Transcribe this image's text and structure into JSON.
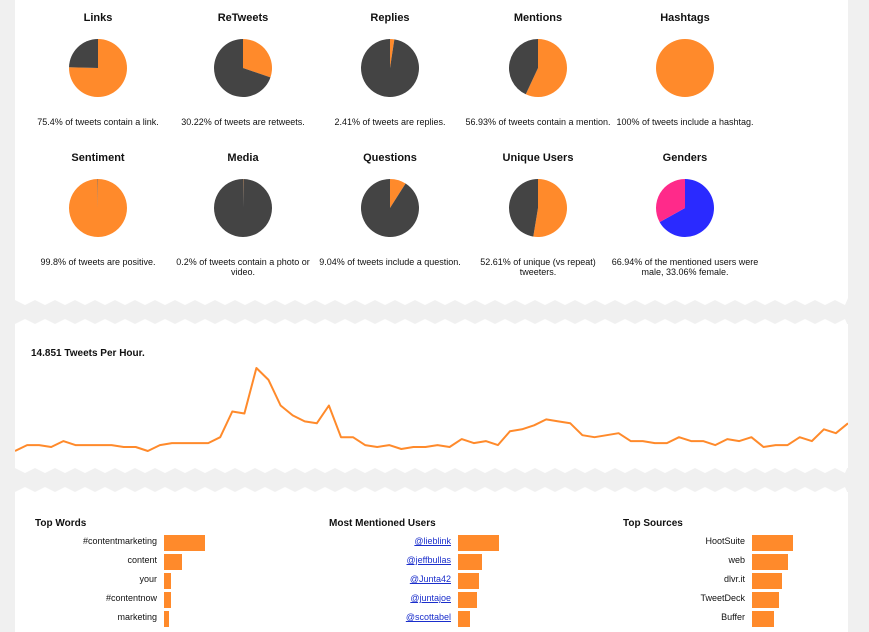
{
  "colors": {
    "accent": "#ff8a2b",
    "dark": "#444444",
    "pink": "#ff2a8a",
    "blue": "#2a2aff"
  },
  "stats": [
    {
      "title": "Links",
      "caption": "75.4% of tweets contain a link.",
      "value": 75.4
    },
    {
      "title": "ReTweets",
      "caption": "30.22% of tweets are retweets.",
      "value": 30.22
    },
    {
      "title": "Replies",
      "caption": "2.41% of tweets are replies.",
      "value": 2.41
    },
    {
      "title": "Mentions",
      "caption": "56.93% of tweets contain a mention.",
      "value": 56.93
    },
    {
      "title": "Hashtags",
      "caption": "100% of tweets include a hashtag.",
      "value": 100
    },
    {
      "title": "Sentiment",
      "caption": "99.8% of tweets are positive.",
      "value": 99.8
    },
    {
      "title": "Media",
      "caption": "0.2% of tweets contain a photo or video.",
      "value": 0.2
    },
    {
      "title": "Questions",
      "caption": "9.04% of tweets include a question.",
      "value": 9.04
    },
    {
      "title": "Unique Users",
      "caption": "52.61% of unique (vs repeat) tweeters.",
      "value": 52.61
    },
    {
      "title": "Genders",
      "caption": "66.94% of the mentioned users were male, 33.06% female.",
      "value": 66.94,
      "colors": [
        "#2a2aff",
        "#ff2a8a"
      ]
    }
  ],
  "rate": {
    "title": "14.851 Tweets Per Hour."
  },
  "chart_data": [
    {
      "type": "pie",
      "title": "Links",
      "values": [
        75.4,
        24.6
      ]
    },
    {
      "type": "pie",
      "title": "ReTweets",
      "values": [
        30.22,
        69.78
      ]
    },
    {
      "type": "pie",
      "title": "Replies",
      "values": [
        2.41,
        97.59
      ]
    },
    {
      "type": "pie",
      "title": "Mentions",
      "values": [
        56.93,
        43.07
      ]
    },
    {
      "type": "pie",
      "title": "Hashtags",
      "values": [
        100,
        0
      ]
    },
    {
      "type": "pie",
      "title": "Sentiment",
      "values": [
        99.8,
        0.2
      ]
    },
    {
      "type": "pie",
      "title": "Media",
      "values": [
        0.2,
        99.8
      ]
    },
    {
      "type": "pie",
      "title": "Questions",
      "values": [
        9.04,
        90.96
      ]
    },
    {
      "type": "pie",
      "title": "Unique Users",
      "values": [
        52.61,
        47.39
      ]
    },
    {
      "type": "pie",
      "title": "Genders",
      "values": [
        66.94,
        33.06
      ]
    },
    {
      "type": "line",
      "title": "14.851 Tweets Per Hour.",
      "values": [
        10,
        13,
        13,
        12,
        15,
        13,
        13,
        13,
        13,
        12,
        12,
        10,
        13,
        14,
        14,
        14,
        14,
        17,
        30,
        29,
        52,
        46,
        33,
        28,
        25,
        24,
        33,
        17,
        17,
        13,
        12,
        13,
        11,
        12,
        12,
        13,
        12,
        16,
        14,
        15,
        13,
        20,
        21,
        23,
        26,
        25,
        24,
        18,
        17,
        18,
        19,
        15,
        15,
        14,
        14,
        17,
        15,
        15,
        13,
        16,
        15,
        17,
        12,
        13,
        13,
        17,
        15,
        21,
        19,
        24
      ]
    },
    {
      "type": "bar",
      "title": "Top Words",
      "categories": [
        "#contentmarketing",
        "content",
        "your",
        "#contentnow",
        "marketing"
      ],
      "values": [
        41,
        18,
        7,
        7,
        5
      ]
    },
    {
      "type": "bar",
      "title": "Most Mentioned Users",
      "categories": [
        "@lieblink",
        "@jeffbullas",
        "@Junta42",
        "@juntajoe",
        "@scottabel"
      ],
      "values": [
        41,
        24,
        21,
        19,
        12
      ]
    },
    {
      "type": "bar",
      "title": "Top Sources",
      "categories": [
        "HootSuite",
        "web",
        "dlvr.it",
        "TweetDeck",
        "Buffer"
      ],
      "values": [
        41,
        36,
        30,
        27,
        22
      ]
    }
  ],
  "top_lists": [
    {
      "title": "Top Words",
      "links": false,
      "items": [
        "#contentmarketing",
        "content",
        "your",
        "#contentnow",
        "marketing"
      ]
    },
    {
      "title": "Most Mentioned Users",
      "links": true,
      "items": [
        "@lieblink",
        "@jeffbullas",
        "@Junta42",
        "@juntajoe",
        "@scottabel"
      ]
    },
    {
      "title": "Top Sources",
      "links": false,
      "items": [
        "HootSuite",
        "web",
        "dlvr.it",
        "TweetDeck",
        "Buffer"
      ]
    }
  ]
}
